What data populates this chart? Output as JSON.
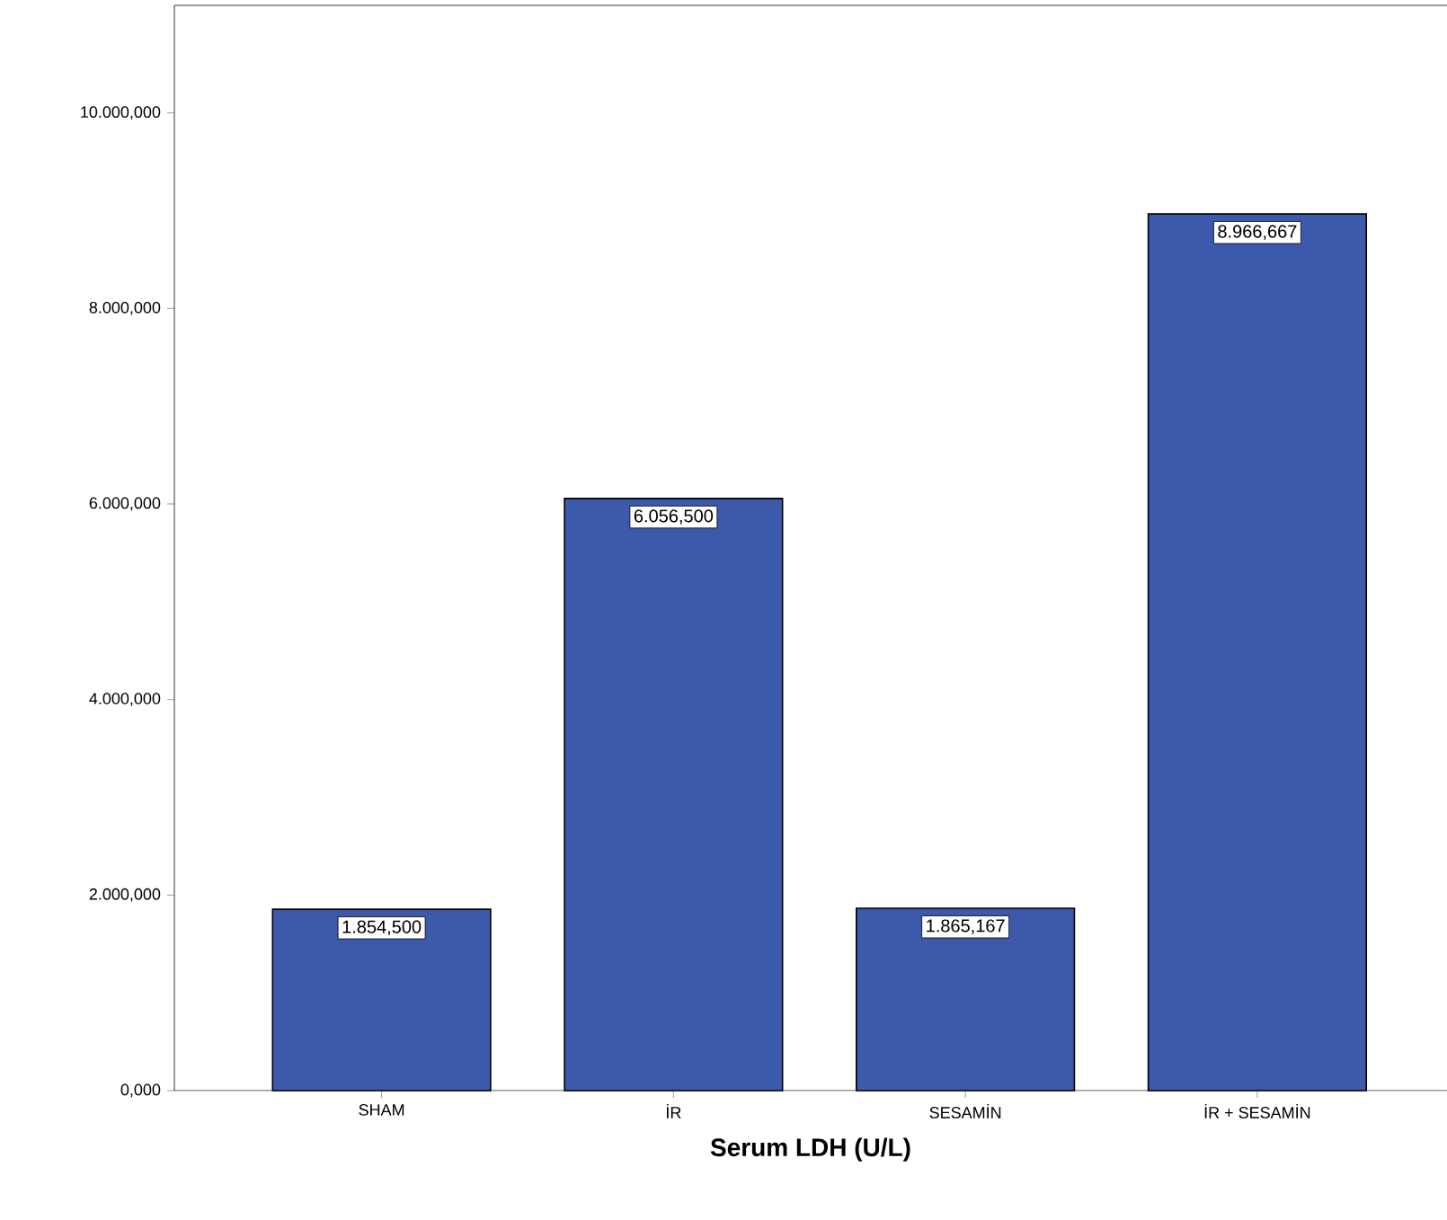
{
  "chart_data": {
    "type": "bar",
    "xlabel": "Serum LDH (U/L)",
    "categories": [
      "SHAM",
      "İR",
      "SESAMİN",
      "İR + SESAMİN"
    ],
    "values": [
      1854.5,
      6056.5,
      1865.167,
      8966.667
    ],
    "value_labels": [
      "1.854,500",
      "6.056,500",
      "1.865,167",
      "8.966,667"
    ],
    "color": "#3d59ab",
    "ylim": [
      0,
      11100
    ],
    "yticks": [
      {
        "value": 0,
        "label": "0,000"
      },
      {
        "value": 2000,
        "label": "2.000,000"
      },
      {
        "value": 4000,
        "label": "4.000,000"
      },
      {
        "value": 6000,
        "label": "6.000,000"
      },
      {
        "value": 8000,
        "label": "8.000,000"
      },
      {
        "value": 10000,
        "label": "10.000,000"
      }
    ]
  }
}
